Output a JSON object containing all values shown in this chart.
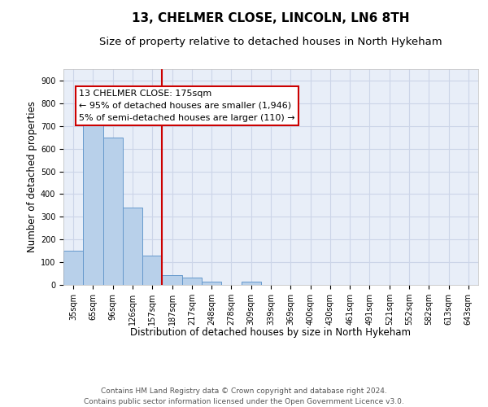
{
  "title": "13, CHELMER CLOSE, LINCOLN, LN6 8TH",
  "subtitle": "Size of property relative to detached houses in North Hykeham",
  "xlabel": "Distribution of detached houses by size in North Hykeham",
  "ylabel": "Number of detached properties",
  "categories": [
    "35sqm",
    "65sqm",
    "96sqm",
    "126sqm",
    "157sqm",
    "187sqm",
    "217sqm",
    "248sqm",
    "278sqm",
    "309sqm",
    "339sqm",
    "369sqm",
    "400sqm",
    "430sqm",
    "461sqm",
    "491sqm",
    "521sqm",
    "552sqm",
    "582sqm",
    "613sqm",
    "643sqm"
  ],
  "values": [
    150,
    720,
    650,
    340,
    130,
    43,
    33,
    13,
    0,
    13,
    0,
    0,
    0,
    0,
    0,
    0,
    0,
    0,
    0,
    0,
    0
  ],
  "bar_color": "#b8d0ea",
  "bar_edge_color": "#6699cc",
  "vline_x": 4.5,
  "vline_color": "#cc0000",
  "annotation_text": "13 CHELMER CLOSE: 175sqm\n← 95% of detached houses are smaller (1,946)\n5% of semi-detached houses are larger (110) →",
  "annotation_box_color": "#ffffff",
  "annotation_box_edge": "#cc0000",
  "ylim": [
    0,
    950
  ],
  "yticks": [
    0,
    100,
    200,
    300,
    400,
    500,
    600,
    700,
    800,
    900
  ],
  "grid_color": "#ccd5e8",
  "background_color": "#e8eef8",
  "footer": "Contains HM Land Registry data © Crown copyright and database right 2024.\nContains public sector information licensed under the Open Government Licence v3.0.",
  "title_fontsize": 11,
  "subtitle_fontsize": 9.5,
  "xlabel_fontsize": 8.5,
  "ylabel_fontsize": 8.5,
  "tick_fontsize": 7,
  "annotation_fontsize": 8,
  "footer_fontsize": 6.5
}
